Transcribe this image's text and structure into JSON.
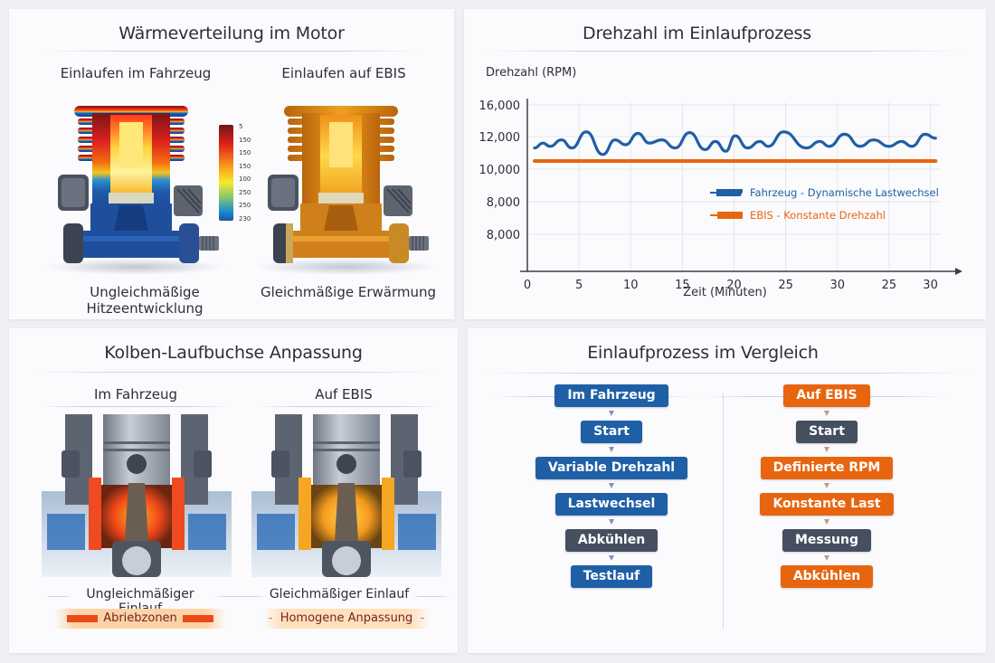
{
  "panels": {
    "heat": {
      "title": "Wärmeverteilung im Motor",
      "left_label": "Einlaufen im Fahrzeug",
      "right_label": "Einlaufen auf EBIS",
      "left_caption": "Ungleichmäßige Hitzeentwicklung",
      "right_caption": "Gleichmäßige Erwärmung",
      "scale_ticks": [
        "5",
        "150",
        "150",
        "150",
        "100",
        "250",
        "250",
        "230"
      ]
    },
    "rpm": {
      "title": "Drehzahl im Einlaufprozess"
    },
    "piston": {
      "title": "Kolben-Laufbuchse Anpassung",
      "left_label": "Im Fahrzeug",
      "right_label": "Auf EBIS",
      "left_caption": "Ungleichmäßiger Einlauf",
      "right_caption": "Gleichmäßiger Einlauf",
      "left_badge": "Abriebzonen",
      "right_badge": "Homogene Anpassung",
      "right_badge_dash": "-"
    },
    "flow": {
      "title": "Einlaufprozess im Vergleich",
      "left": [
        {
          "label": "Im Fahrzeug",
          "style": "blue"
        },
        {
          "label": "Start",
          "style": "blue"
        },
        {
          "label": "Variable Drehzahl",
          "style": "blue"
        },
        {
          "label": "Lastwechsel",
          "style": "blue"
        },
        {
          "label": "Abkühlen",
          "style": "dark"
        },
        {
          "label": "Testlauf",
          "style": "blue"
        }
      ],
      "right": [
        {
          "label": "Auf EBIS",
          "style": "orange"
        },
        {
          "label": "Start",
          "style": "dark"
        },
        {
          "label": "Definierte RPM",
          "style": "orange"
        },
        {
          "label": "Konstante Last",
          "style": "orange"
        },
        {
          "label": "Messung",
          "style": "dark"
        },
        {
          "label": "Abkühlen",
          "style": "orange"
        }
      ]
    }
  },
  "colors": {
    "blue": "#1f5fa6",
    "orange": "#e8650f",
    "dark": "#464f60"
  },
  "chart_data": {
    "type": "line",
    "title": "Drehzahl im Einlaufprozess",
    "xlabel": "Zeit (Minuten)",
    "ylabel": "Drehzahl (RPM)",
    "x_tick_labels": [
      "0",
      "5",
      "10",
      "15",
      "20",
      "25",
      "30",
      "25",
      "30"
    ],
    "y_tick_labels": [
      "16,000",
      "12,000",
      "10,000",
      "8,000",
      "8,000"
    ],
    "grid": true,
    "legend_position": "lower right inside",
    "x": [
      0.7,
      1.5,
      2.2,
      3.3,
      4.3,
      5.7,
      7.3,
      8.5,
      9.5,
      10.7,
      11.8,
      13,
      14.3,
      15.7,
      17.2,
      18.2,
      19.2,
      20.1,
      21.3,
      22.5,
      23.3,
      24.8,
      27,
      28.3,
      29.2,
      30.7,
      32.2,
      33.5,
      35,
      36.2,
      37.2,
      38.5,
      39.5
    ],
    "series": [
      {
        "name": "Fahrzeug - Dynamische Lastwechsel",
        "color": "#1f5fa6",
        "values": [
          11300,
          11600,
          11400,
          11800,
          11300,
          12600,
          10900,
          11800,
          11500,
          12400,
          11600,
          11800,
          11300,
          12500,
          11200,
          11700,
          11100,
          12100,
          11300,
          11700,
          11400,
          12600,
          11300,
          11700,
          11400,
          12300,
          11400,
          11800,
          11400,
          11700,
          11400,
          12300,
          11900
        ]
      },
      {
        "name": "EBIS - Konstante Drehzahl",
        "color": "#e8650f",
        "values": [
          10500,
          10500,
          10500,
          10500,
          10500,
          10500,
          10500,
          10500,
          10500,
          10500,
          10500,
          10500,
          10500,
          10500,
          10500,
          10500,
          10500,
          10500,
          10500,
          10500,
          10500,
          10500,
          10500,
          10500,
          10500,
          10500,
          10500,
          10500,
          10500,
          10500,
          10500,
          10500,
          10500
        ]
      }
    ]
  }
}
